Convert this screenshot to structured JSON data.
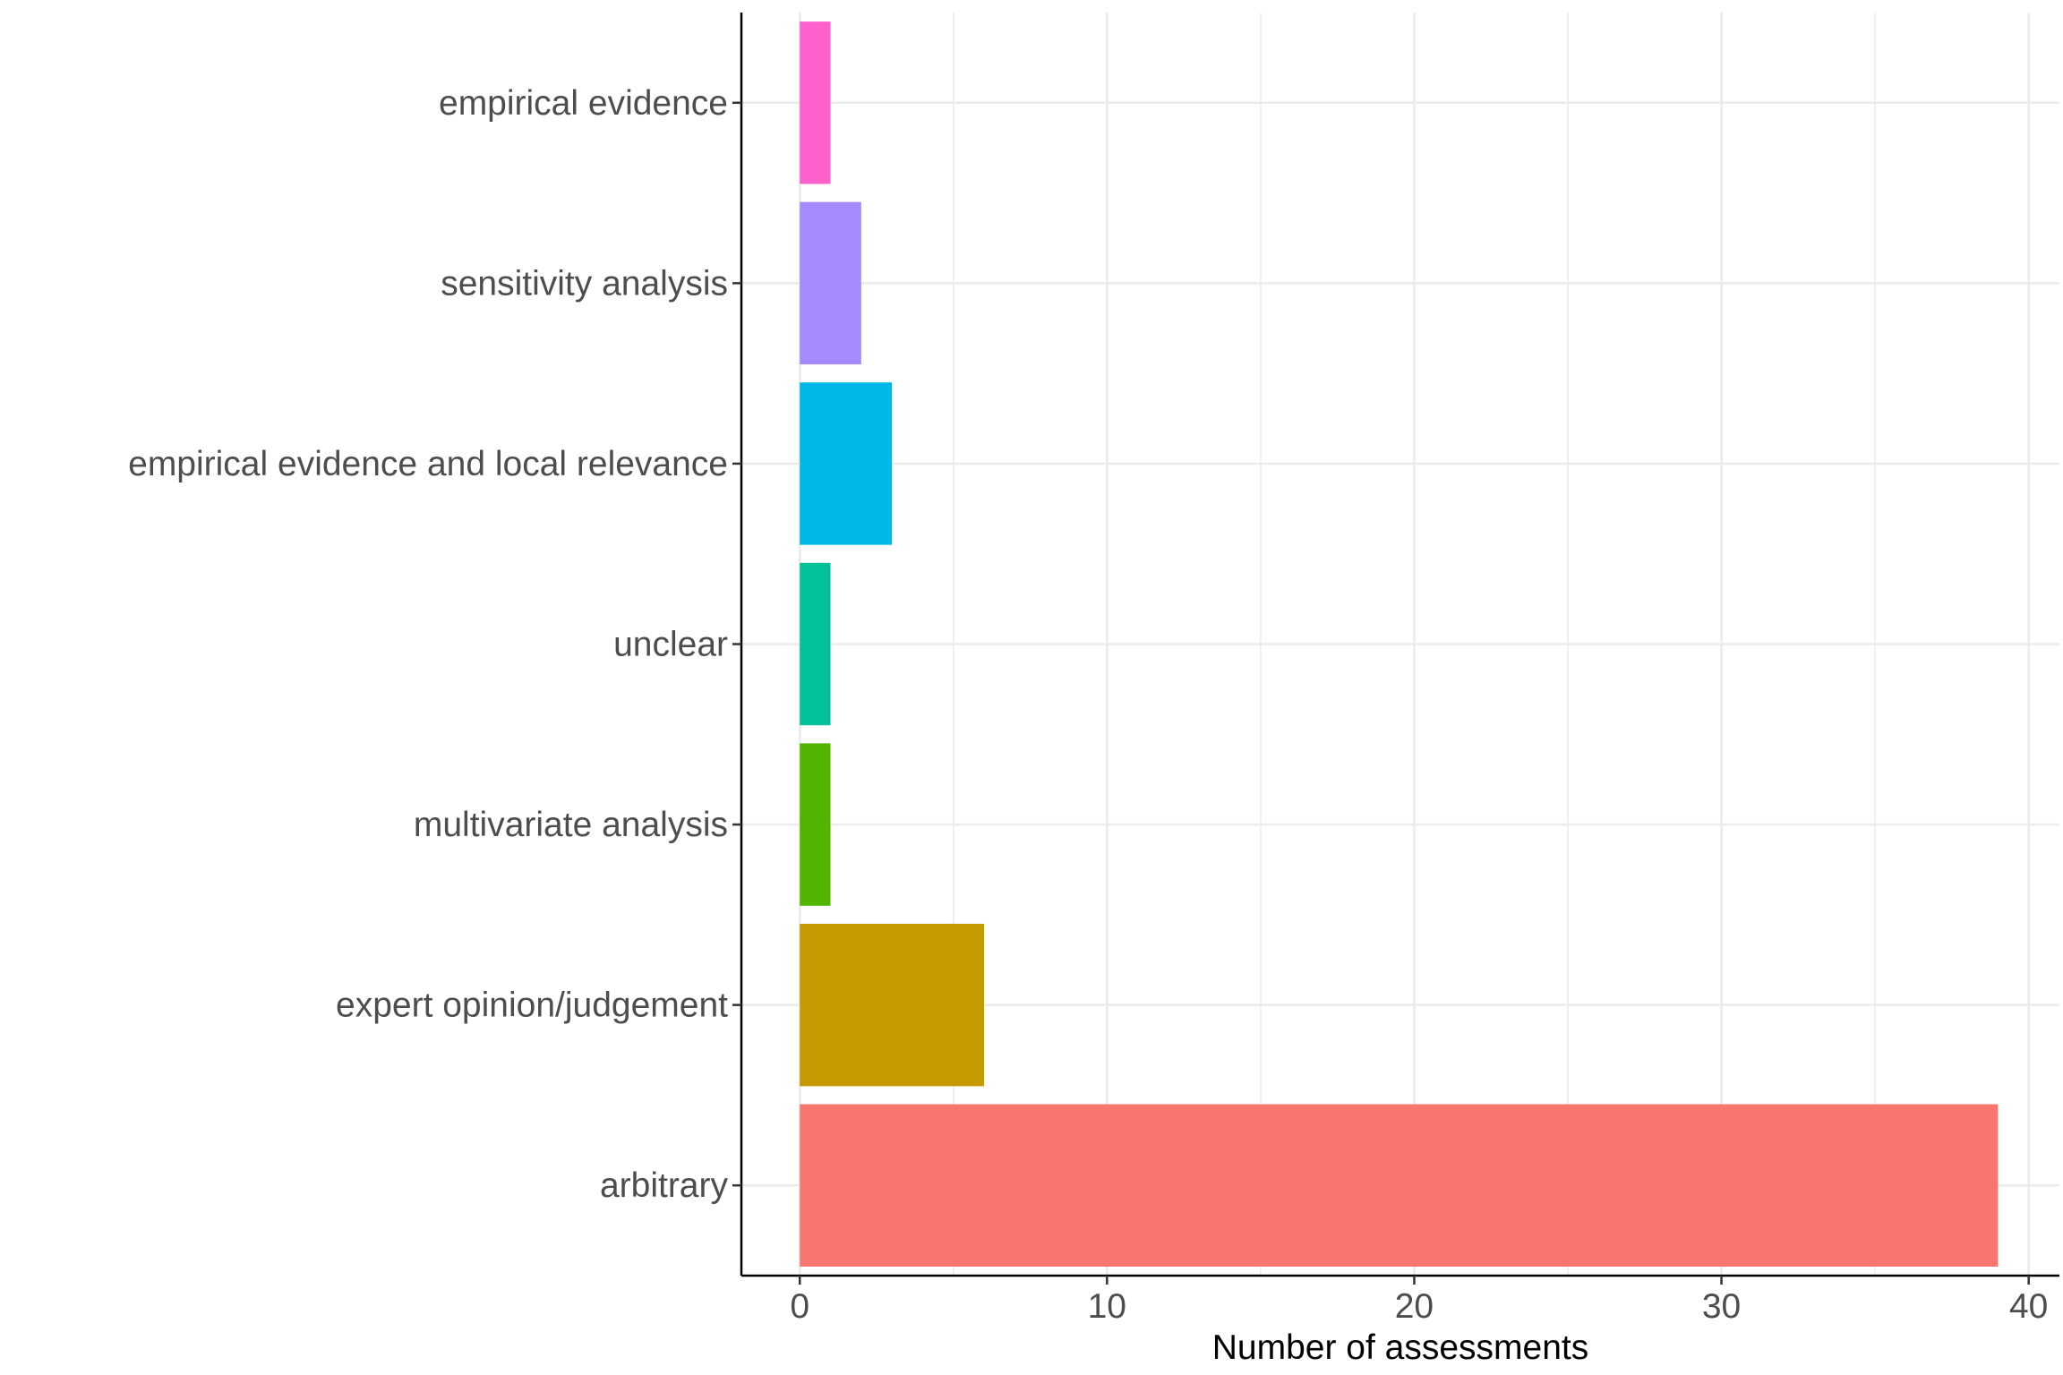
{
  "chart_data": {
    "type": "bar",
    "orientation": "horizontal",
    "categories": [
      "empirical evidence",
      "sensitivity analysis",
      "empirical evidence and local relevance",
      "unclear",
      "multivariate analysis",
      "expert opinion/judgement",
      "arbitrary"
    ],
    "values": [
      1,
      2,
      3,
      1,
      1,
      6,
      39
    ],
    "colors": [
      "#FF61CC",
      "#A58AFF",
      "#00B8E7",
      "#00C19A",
      "#53B400",
      "#C49A00",
      "#F8766D"
    ],
    "xlabel": "Number of assessments",
    "ylabel": "",
    "title": "",
    "xlim": [
      -1.9,
      41
    ],
    "xticks": [
      0,
      10,
      20,
      30,
      40
    ],
    "xtick_labels": [
      "0",
      "10",
      "20",
      "30",
      "40"
    ],
    "grid": true,
    "legend": "none"
  }
}
